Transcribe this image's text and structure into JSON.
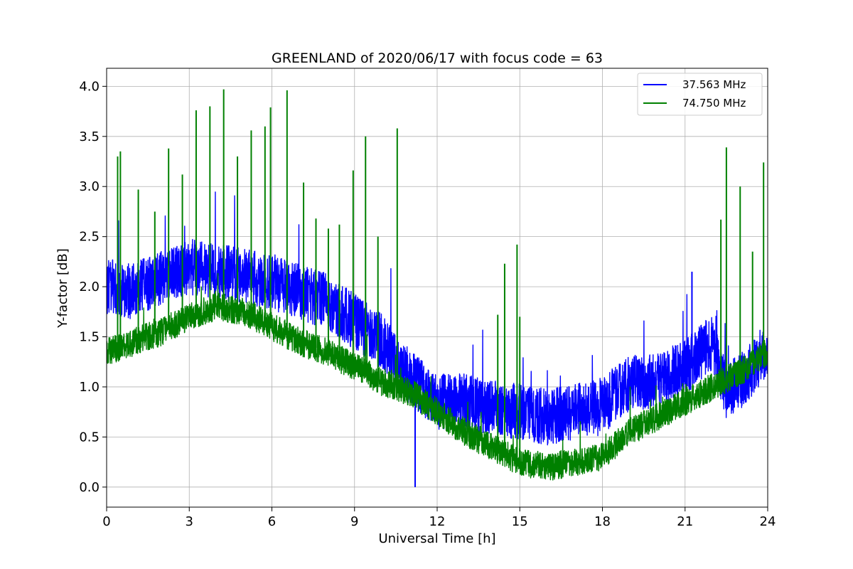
{
  "chart_data": {
    "type": "line",
    "title": "GREENLAND of 2020/06/17 with focus code = 63",
    "xlabel": "Universal Time [h]",
    "ylabel": "Y-factor [dB]",
    "xlim": [
      0,
      24
    ],
    "ylim": [
      -0.2,
      4.18
    ],
    "xticks": [
      0,
      3,
      6,
      9,
      12,
      15,
      18,
      21,
      24
    ],
    "yticks": [
      0.0,
      0.5,
      1.0,
      1.5,
      2.0,
      2.5,
      3.0,
      3.5,
      4.0
    ],
    "xtick_labels": [
      "0",
      "3",
      "6",
      "9",
      "12",
      "15",
      "18",
      "21",
      "24"
    ],
    "ytick_labels": [
      "0.0",
      "0.5",
      "1.0",
      "1.5",
      "2.0",
      "2.5",
      "3.0",
      "3.5",
      "4.0"
    ],
    "grid": true,
    "legend_position": "top-right",
    "series": [
      {
        "name": "37.563 MHz",
        "color": "#0000ff",
        "baseline": {
          "x": [
            0,
            1,
            2,
            3,
            4,
            5,
            6,
            7,
            8,
            9,
            10,
            11,
            12,
            13,
            14,
            15,
            16,
            17,
            18,
            19,
            20,
            21,
            22,
            22.5,
            23,
            23.5,
            24
          ],
          "y": [
            2.0,
            1.95,
            2.1,
            2.2,
            2.15,
            2.1,
            2.05,
            1.95,
            1.85,
            1.65,
            1.45,
            1.1,
            0.85,
            0.85,
            0.8,
            0.75,
            0.7,
            0.75,
            0.8,
            1.05,
            1.05,
            1.2,
            1.45,
            0.95,
            1.05,
            1.2,
            1.4
          ]
        },
        "noise_amplitude": 0.28,
        "spikes": [
          {
            "x": 11.2,
            "y": 0.0
          },
          {
            "x": 21.25,
            "y": 2.15
          }
        ]
      },
      {
        "name": "74.750 MHz",
        "color": "#008000",
        "baseline": {
          "x": [
            0,
            1,
            2,
            3,
            4,
            5,
            6,
            7,
            8,
            9,
            10,
            11,
            12,
            13,
            14,
            15,
            16,
            17,
            18,
            19,
            20,
            21,
            22,
            23,
            24
          ],
          "y": [
            1.35,
            1.45,
            1.55,
            1.7,
            1.8,
            1.75,
            1.6,
            1.45,
            1.35,
            1.2,
            1.05,
            0.95,
            0.75,
            0.55,
            0.4,
            0.25,
            0.2,
            0.25,
            0.3,
            0.55,
            0.7,
            0.85,
            1.0,
            1.15,
            1.35
          ]
        },
        "noise_amplitude": 0.14,
        "spikes": [
          {
            "x": 0.4,
            "y": 3.3
          },
          {
            "x": 0.5,
            "y": 3.35
          },
          {
            "x": 1.15,
            "y": 2.97
          },
          {
            "x": 1.75,
            "y": 2.75
          },
          {
            "x": 2.25,
            "y": 3.38
          },
          {
            "x": 2.75,
            "y": 3.12
          },
          {
            "x": 3.25,
            "y": 3.76
          },
          {
            "x": 3.75,
            "y": 3.8
          },
          {
            "x": 4.25,
            "y": 3.97
          },
          {
            "x": 4.75,
            "y": 3.3
          },
          {
            "x": 5.25,
            "y": 3.56
          },
          {
            "x": 5.75,
            "y": 3.6
          },
          {
            "x": 5.95,
            "y": 3.79
          },
          {
            "x": 6.55,
            "y": 3.96
          },
          {
            "x": 7.15,
            "y": 3.04
          },
          {
            "x": 7.6,
            "y": 2.68
          },
          {
            "x": 8.05,
            "y": 2.58
          },
          {
            "x": 8.45,
            "y": 2.62
          },
          {
            "x": 8.95,
            "y": 3.16
          },
          {
            "x": 9.4,
            "y": 3.5
          },
          {
            "x": 9.85,
            "y": 2.5
          },
          {
            "x": 10.55,
            "y": 3.58
          },
          {
            "x": 14.2,
            "y": 1.72
          },
          {
            "x": 14.45,
            "y": 2.23
          },
          {
            "x": 14.9,
            "y": 2.42
          },
          {
            "x": 15.0,
            "y": 1.7
          },
          {
            "x": 22.3,
            "y": 2.67
          },
          {
            "x": 22.5,
            "y": 3.39
          },
          {
            "x": 23.0,
            "y": 3.0
          },
          {
            "x": 23.45,
            "y": 2.35
          },
          {
            "x": 23.85,
            "y": 3.24
          }
        ]
      }
    ]
  }
}
